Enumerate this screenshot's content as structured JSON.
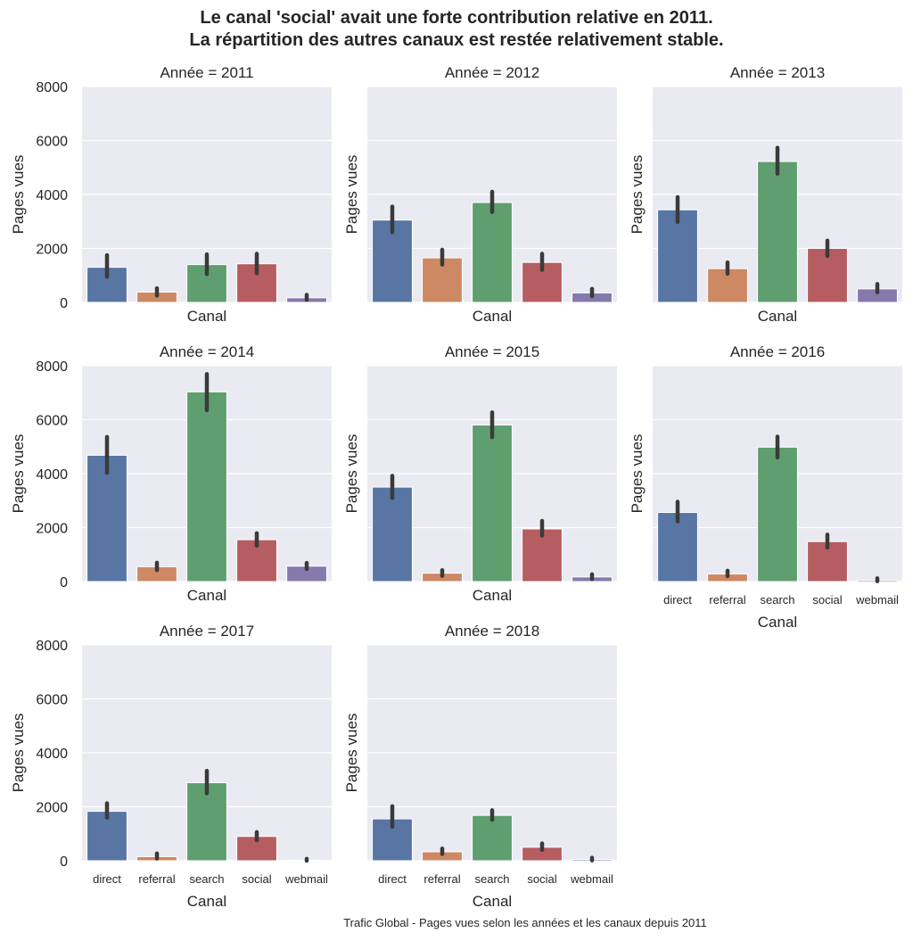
{
  "title_line1": "Le canal 'social' avait une forte contribution relative en 2011.",
  "title_line2": "La répartition des autres canaux est restée relativement stable.",
  "footer": "Trafic Global - Pages vues selon les années et les canaux depuis 2011",
  "colors": {
    "background": "#eaeaf2",
    "grid": "#ffffff",
    "errorbar": "#3a3a3a",
    "direct": "#5875a4",
    "referral": "#cc8963",
    "search": "#5f9e6e",
    "social": "#b55d60",
    "webmail": "#857aab"
  },
  "chart_data": {
    "type": "bar",
    "facet_by": "Année",
    "xlabel": "Canal",
    "ylabel": "Pages vues",
    "ylim": [
      0,
      8000
    ],
    "yticks": [
      0,
      2000,
      4000,
      6000,
      8000
    ],
    "grid": true,
    "categories": [
      "direct",
      "referral",
      "search",
      "social",
      "webmail"
    ],
    "panels": [
      {
        "title": "Année = 2011",
        "values": [
          1300,
          380,
          1400,
          1430,
          170
        ],
        "ci_low": [
          950,
          250,
          1050,
          1080,
          90
        ],
        "ci_high": [
          1750,
          520,
          1780,
          1800,
          280
        ]
      },
      {
        "title": "Année = 2012",
        "values": [
          3050,
          1650,
          3700,
          1480,
          350
        ],
        "ci_low": [
          2600,
          1400,
          3350,
          1200,
          230
        ],
        "ci_high": [
          3550,
          1950,
          4100,
          1800,
          500
        ]
      },
      {
        "title": "Année = 2013",
        "values": [
          3430,
          1250,
          5220,
          2000,
          500
        ],
        "ci_low": [
          2980,
          1060,
          4770,
          1720,
          370
        ],
        "ci_high": [
          3900,
          1480,
          5730,
          2290,
          680
        ]
      },
      {
        "title": "Année = 2014",
        "values": [
          4680,
          550,
          7030,
          1550,
          570
        ],
        "ci_low": [
          4030,
          420,
          6350,
          1330,
          460
        ],
        "ci_high": [
          5360,
          700,
          7690,
          1790,
          690
        ]
      },
      {
        "title": "Année = 2015",
        "values": [
          3500,
          310,
          5800,
          1950,
          170
        ],
        "ci_low": [
          3100,
          210,
          5350,
          1700,
          90
        ],
        "ci_high": [
          3920,
          420,
          6270,
          2250,
          270
        ]
      },
      {
        "title": "Année = 2016",
        "values": [
          2560,
          280,
          4980,
          1480,
          50
        ],
        "ci_low": [
          2230,
          200,
          4600,
          1260,
          10
        ],
        "ci_high": [
          2960,
          400,
          5370,
          1740,
          120
        ]
      },
      {
        "title": "Année = 2017",
        "values": [
          1830,
          150,
          2890,
          900,
          20
        ],
        "ci_low": [
          1600,
          80,
          2500,
          760,
          0
        ],
        "ci_high": [
          2130,
          270,
          3330,
          1060,
          70
        ]
      },
      {
        "title": "Année = 2018",
        "values": [
          1550,
          330,
          1680,
          500,
          50
        ],
        "ci_low": [
          1260,
          250,
          1520,
          400,
          10
        ],
        "ci_high": [
          2020,
          450,
          1870,
          640,
          110
        ]
      }
    ]
  }
}
